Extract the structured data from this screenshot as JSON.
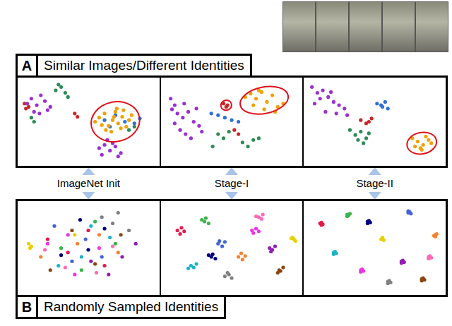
{
  "sections": [
    {
      "letter": "A",
      "title": "Similar Images/Different Identities"
    },
    {
      "letter": "B",
      "title": "Randomly Sampled Identities"
    }
  ],
  "stage_labels": [
    "ImageNet Init",
    "Stage-I",
    "Stage-II"
  ],
  "chart_data": [
    {
      "type": "scatter",
      "xlim": [
        0,
        100
      ],
      "ylim": [
        0,
        100
      ],
      "tick_labels": false,
      "grid": false,
      "series": [
        {
          "color": "#9b30d0",
          "x": [
            5,
            8,
            12,
            15,
            18,
            22,
            10,
            14,
            20,
            58,
            62,
            66,
            70,
            74,
            60,
            68,
            72,
            64
          ],
          "values": [
            72,
            78,
            70,
            82,
            75,
            68,
            62,
            60,
            64,
            18,
            22,
            15,
            20,
            12,
            10,
            24,
            8,
            28
          ]
        },
        {
          "color": "#2e8b57",
          "x": [
            26,
            30,
            33,
            28,
            35,
            8,
            10,
            80,
            84
          ],
          "values": [
            88,
            92,
            85,
            95,
            80,
            55,
            50,
            40,
            44
          ]
        },
        {
          "color": "#c62828",
          "x": [
            3,
            6,
            4,
            40,
            42
          ],
          "values": [
            72,
            68,
            66,
            60,
            56
          ]
        },
        {
          "color": "#f0a000",
          "x": [
            55,
            58,
            62,
            65,
            68,
            70,
            72,
            75,
            78,
            80,
            82,
            63,
            67,
            71,
            76,
            60,
            69,
            74
          ],
          "values": [
            50,
            55,
            60,
            45,
            52,
            62,
            48,
            56,
            44,
            52,
            58,
            40,
            38,
            66,
            64,
            46,
            56,
            42
          ]
        },
        {
          "color": "#2f6fd6",
          "x": [
            62,
            70,
            77,
            84,
            66,
            88
          ],
          "values": [
            52,
            58,
            50,
            48,
            44,
            54
          ]
        }
      ]
    },
    {
      "type": "scatter",
      "xlim": [
        0,
        100
      ],
      "ylim": [
        0,
        100
      ],
      "tick_labels": false,
      "grid": false,
      "series": [
        {
          "color": "#9b30d0",
          "x": [
            5,
            8,
            10,
            14,
            18,
            22,
            26,
            12,
            16,
            20,
            8,
            24,
            28,
            6,
            15
          ],
          "values": [
            78,
            70,
            60,
            55,
            62,
            50,
            45,
            40,
            35,
            30,
            48,
            66,
            38,
            65,
            72
          ]
        },
        {
          "color": "#f0a000",
          "x": [
            60,
            64,
            68,
            72,
            76,
            80,
            84,
            88,
            66,
            74,
            82,
            70
          ],
          "values": [
            80,
            84,
            78,
            86,
            74,
            82,
            68,
            72,
            70,
            65,
            62,
            88
          ]
        },
        {
          "color": "#c62828",
          "x": [
            44,
            47,
            46,
            52,
            55
          ],
          "values": [
            72,
            70,
            68,
            40,
            35
          ]
        },
        {
          "color": "#2e8b57",
          "x": [
            40,
            44,
            48,
            58,
            62,
            66,
            70,
            36
          ],
          "values": [
            35,
            30,
            38,
            25,
            20,
            28,
            30,
            20
          ]
        },
        {
          "color": "#2f6fd6",
          "x": [
            40,
            45,
            50,
            35,
            55
          ],
          "values": [
            58,
            55,
            52,
            60,
            50
          ]
        }
      ]
    },
    {
      "type": "scatter",
      "xlim": [
        0,
        100
      ],
      "ylim": [
        0,
        100
      ],
      "tick_labels": false,
      "grid": false,
      "series": [
        {
          "color": "#9b30d0",
          "x": [
            4,
            8,
            12,
            16,
            20,
            24,
            28,
            10,
            14,
            22,
            30,
            18,
            6
          ],
          "values": [
            92,
            85,
            88,
            80,
            74,
            70,
            66,
            78,
            62,
            60,
            58,
            86,
            72
          ]
        },
        {
          "color": "#2f6fd6",
          "x": [
            52,
            55,
            58,
            60,
            56
          ],
          "values": [
            72,
            70,
            74,
            66,
            68
          ]
        },
        {
          "color": "#2e8b57",
          "x": [
            32,
            36,
            40,
            44,
            38,
            42,
            46
          ],
          "values": [
            40,
            34,
            38,
            30,
            28,
            24,
            36
          ]
        },
        {
          "color": "#c62828",
          "x": [
            40,
            44,
            48,
            46
          ],
          "values": [
            52,
            48,
            54,
            50
          ]
        },
        {
          "color": "#f0a000",
          "x": [
            78,
            82,
            86,
            90,
            84,
            88,
            80,
            92,
            85
          ],
          "values": [
            30,
            26,
            22,
            28,
            18,
            32,
            20,
            24,
            16
          ]
        }
      ]
    },
    {
      "type": "scatter",
      "xlim": [
        0,
        100
      ],
      "ylim": [
        0,
        100
      ],
      "tick_labels": false,
      "grid": false,
      "series": [
        {
          "color": "#e6194b",
          "x": [
            20,
            35,
            50,
            62
          ],
          "values": [
            60,
            45,
            70,
            30
          ]
        },
        {
          "color": "#3cb44b",
          "x": [
            30,
            55,
            45,
            70
          ],
          "values": [
            50,
            80,
            25,
            55
          ]
        },
        {
          "color": "#e8d000",
          "x": [
            6,
            8,
            7,
            40
          ],
          "values": [
            55,
            52,
            50,
            65
          ]
        },
        {
          "color": "#4363d8",
          "x": [
            25,
            48,
            60,
            38
          ],
          "values": [
            75,
            60,
            40,
            35
          ]
        },
        {
          "color": "#f58231",
          "x": [
            15,
            42,
            58,
            72
          ],
          "values": [
            40,
            55,
            65,
            45
          ]
        },
        {
          "color": "#911eb4",
          "x": [
            52,
            65,
            75,
            85
          ],
          "values": [
            35,
            20,
            40,
            55
          ]
        },
        {
          "color": "#20b2c8",
          "x": [
            28,
            45,
            52,
            66
          ],
          "values": [
            30,
            40,
            75,
            62
          ]
        },
        {
          "color": "#f032e6",
          "x": [
            35,
            58,
            40,
            20
          ],
          "values": [
            65,
            50,
            20,
            55
          ]
        },
        {
          "color": "#808080",
          "x": [
            60,
            68,
            72,
            80
          ],
          "values": [
            85,
            78,
            90,
            70
          ]
        },
        {
          "color": "#8b4513",
          "x": [
            22,
            38,
            55,
            74
          ],
          "values": [
            25,
            70,
            32,
            65
          ]
        },
        {
          "color": "#000080",
          "x": [
            44,
            62,
            30,
            50
          ],
          "values": [
            82,
            72,
            42,
            48
          ]
        },
        {
          "color": "#ff69b4",
          "x": [
            18,
            33,
            68,
            56
          ],
          "values": [
            48,
            28,
            52,
            22
          ]
        }
      ]
    },
    {
      "type": "scatter",
      "xlim": [
        0,
        100
      ],
      "ylim": [
        0,
        100
      ],
      "tick_labels": false,
      "grid": false,
      "series": [
        {
          "color": "#e6194b",
          "x": [
            10,
            13,
            12,
            15
          ],
          "values": [
            70,
            73,
            66,
            69
          ]
        },
        {
          "color": "#3cb44b",
          "x": [
            30,
            33,
            31,
            28
          ],
          "values": [
            80,
            78,
            84,
            82
          ]
        },
        {
          "color": "#e8d000",
          "x": [
            96,
            95,
            97,
            94
          ],
          "values": [
            60,
            62,
            58,
            61
          ]
        },
        {
          "color": "#4363d8",
          "x": [
            40,
            43,
            41,
            45
          ],
          "values": [
            55,
            52,
            58,
            57
          ]
        },
        {
          "color": "#f58231",
          "x": [
            55,
            57,
            60,
            58
          ],
          "values": [
            40,
            44,
            41,
            37
          ]
        },
        {
          "color": "#911eb4",
          "x": [
            78,
            80,
            82,
            79
          ],
          "values": [
            50,
            48,
            52,
            46
          ]
        },
        {
          "color": "#20b2c8",
          "x": [
            20,
            24,
            22,
            18
          ],
          "values": [
            30,
            32,
            28,
            27
          ]
        },
        {
          "color": "#f032e6",
          "x": [
            65,
            68,
            66,
            70
          ],
          "values": [
            70,
            72,
            67,
            69
          ]
        },
        {
          "color": "#808080",
          "x": [
            45,
            48,
            50,
            47
          ],
          "values": [
            18,
            20,
            16,
            22
          ]
        },
        {
          "color": "#8b4513",
          "x": [
            85,
            88,
            86,
            84
          ],
          "values": [
            25,
            28,
            24,
            22
          ]
        },
        {
          "color": "#000080",
          "x": [
            35,
            38,
            36,
            33
          ],
          "values": [
            40,
            38,
            43,
            42
          ]
        },
        {
          "color": "#ff69b4",
          "x": [
            70,
            73,
            72,
            68
          ],
          "values": [
            85,
            88,
            83,
            86
          ]
        }
      ]
    },
    {
      "type": "scatter",
      "xlim": [
        0,
        100
      ],
      "ylim": [
        0,
        100
      ],
      "tick_labels": false,
      "grid": false,
      "series": [
        {
          "color": "#e6194b",
          "x": [
            10,
            11,
            12,
            11
          ],
          "values": [
            78,
            79,
            77,
            76
          ]
        },
        {
          "color": "#3cb44b",
          "x": [
            30,
            31,
            32,
            30
          ],
          "values": [
            88,
            87,
            89,
            86
          ]
        },
        {
          "color": "#e8d000",
          "x": [
            55,
            56,
            57,
            56
          ],
          "values": [
            60,
            61,
            59,
            62
          ]
        },
        {
          "color": "#4363d8",
          "x": [
            75,
            76,
            77,
            75
          ],
          "values": [
            90,
            91,
            89,
            92
          ]
        },
        {
          "color": "#f58231",
          "x": [
            95,
            96,
            94,
            95
          ],
          "values": [
            65,
            66,
            64,
            63
          ]
        },
        {
          "color": "#911eb4",
          "x": [
            70,
            71,
            72,
            70
          ],
          "values": [
            35,
            36,
            34,
            33
          ]
        },
        {
          "color": "#20b2c8",
          "x": [
            20,
            21,
            22,
            20
          ],
          "values": [
            45,
            46,
            44,
            43
          ]
        },
        {
          "color": "#f032e6",
          "x": [
            40,
            41,
            42,
            40
          ],
          "values": [
            25,
            26,
            24,
            23
          ]
        },
        {
          "color": "#808080",
          "x": [
            60,
            61,
            62,
            60
          ],
          "values": [
            12,
            13,
            11,
            10
          ]
        },
        {
          "color": "#8b4513",
          "x": [
            85,
            86,
            87,
            85
          ],
          "values": [
            15,
            16,
            14,
            13
          ]
        },
        {
          "color": "#000080",
          "x": [
            45,
            46,
            47,
            45
          ],
          "values": [
            80,
            81,
            79,
            78
          ]
        },
        {
          "color": "#ff69b4",
          "x": [
            90,
            91,
            92,
            90
          ],
          "values": [
            40,
            41,
            39,
            38
          ]
        }
      ]
    }
  ]
}
